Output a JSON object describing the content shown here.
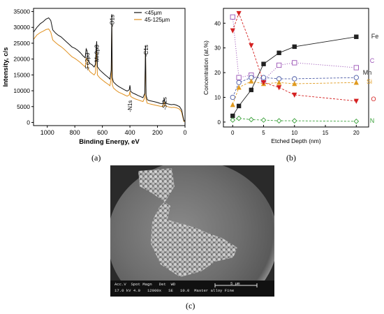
{
  "panel_labels": {
    "a": "(a)",
    "b": "(b)",
    "c": "(c)"
  },
  "chart_data": [
    {
      "type": "line",
      "panel": "(a)",
      "xlabel": "Binding Energy, eV",
      "ylabel": "Intensity, c/s",
      "xlim": [
        1100,
        0
      ],
      "ylim": [
        -1000,
        36000
      ],
      "x_reversed": true,
      "xticks": [
        1000,
        800,
        600,
        400,
        200,
        0
      ],
      "yticks": [
        0,
        5000,
        10000,
        15000,
        20000,
        25000,
        30000,
        35000
      ],
      "legend_position": "top-right",
      "grid": false,
      "peak_labels": [
        {
          "text": "-O1s",
          "x": 530,
          "y": 34000
        },
        {
          "text": "-Fe2p3",
          "x": 710,
          "y": 22000
        },
        {
          "text": "-Mn2p3",
          "x": 640,
          "y": 24500
        },
        {
          "text": "-C1s",
          "x": 285,
          "y": 24500
        },
        {
          "text": "-N1s",
          "x": 400,
          "y": 7000
        },
        {
          "text": "-Si2s",
          "x": 150,
          "y": 8000
        }
      ],
      "series": [
        {
          "name": "<45µm",
          "color": "#111111",
          "points": [
            [
              1100,
              28500
            ],
            [
              1075,
              30000
            ],
            [
              1050,
              31200
            ],
            [
              1030,
              31800
            ],
            [
              1010,
              32600
            ],
            [
              990,
              33000
            ],
            [
              975,
              32200
            ],
            [
              960,
              29200
            ],
            [
              940,
              28200
            ],
            [
              920,
              27500
            ],
            [
              900,
              27000
            ],
            [
              880,
              26200
            ],
            [
              860,
              25400
            ],
            [
              840,
              24600
            ],
            [
              820,
              23800
            ],
            [
              800,
              23400
            ],
            [
              780,
              22800
            ],
            [
              760,
              22000
            ],
            [
              740,
              21000
            ],
            [
              725,
              20400
            ],
            [
              718,
              23200
            ],
            [
              711,
              22600
            ],
            [
              704,
              19600
            ],
            [
              690,
              18600
            ],
            [
              675,
              18200
            ],
            [
              660,
              17500
            ],
            [
              651,
              18300
            ],
            [
              645,
              23800
            ],
            [
              641,
              25600
            ],
            [
              636,
              17600
            ],
            [
              620,
              16600
            ],
            [
              600,
              15800
            ],
            [
              580,
              15000
            ],
            [
              560,
              14300
            ],
            [
              545,
              13700
            ],
            [
              536,
              16500
            ],
            [
              532,
              34200
            ],
            [
              528,
              14200
            ],
            [
              520,
              12800
            ],
            [
              500,
              11900
            ],
            [
              480,
              11300
            ],
            [
              460,
              10800
            ],
            [
              440,
              10300
            ],
            [
              420,
              9900
            ],
            [
              405,
              10300
            ],
            [
              400,
              11700
            ],
            [
              395,
              9800
            ],
            [
              380,
              9300
            ],
            [
              360,
              8900
            ],
            [
              340,
              8500
            ],
            [
              320,
              8100
            ],
            [
              305,
              7800
            ],
            [
              292,
              9200
            ],
            [
              287,
              24200
            ],
            [
              283,
              8600
            ],
            [
              275,
              7200
            ],
            [
              260,
              6900
            ],
            [
              240,
              6700
            ],
            [
              220,
              6500
            ],
            [
              200,
              6300
            ],
            [
              180,
              6000
            ],
            [
              160,
              5900
            ],
            [
              155,
              6800
            ],
            [
              150,
              7300
            ],
            [
              145,
              6200
            ],
            [
              135,
              6000
            ],
            [
              120,
              5800
            ],
            [
              100,
              5600
            ],
            [
              80,
              5700
            ],
            [
              60,
              5400
            ],
            [
              40,
              5000
            ],
            [
              25,
              4000
            ],
            [
              15,
              2000
            ],
            [
              8,
              500
            ],
            [
              0,
              600
            ]
          ]
        },
        {
          "name": "45-125µm",
          "color": "#e0901e",
          "points": [
            [
              1100,
              26200
            ],
            [
              1075,
              27600
            ],
            [
              1050,
              28400
            ],
            [
              1030,
              28800
            ],
            [
              1010,
              29300
            ],
            [
              990,
              29500
            ],
            [
              975,
              28500
            ],
            [
              960,
              26000
            ],
            [
              940,
              25200
            ],
            [
              920,
              24500
            ],
            [
              900,
              23900
            ],
            [
              880,
              23200
            ],
            [
              860,
              22400
            ],
            [
              840,
              21500
            ],
            [
              820,
              20700
            ],
            [
              800,
              20200
            ],
            [
              780,
              19600
            ],
            [
              760,
              18900
            ],
            [
              740,
              18100
            ],
            [
              725,
              17500
            ],
            [
              718,
              20200
            ],
            [
              711,
              19800
            ],
            [
              704,
              17000
            ],
            [
              690,
              16000
            ],
            [
              675,
              15500
            ],
            [
              660,
              15000
            ],
            [
              651,
              15600
            ],
            [
              645,
              21000
            ],
            [
              641,
              22600
            ],
            [
              636,
              15000
            ],
            [
              620,
              14100
            ],
            [
              600,
              13400
            ],
            [
              580,
              12700
            ],
            [
              560,
              12100
            ],
            [
              545,
              11600
            ],
            [
              536,
              14000
            ],
            [
              532,
              31200
            ],
            [
              528,
              12000
            ],
            [
              520,
              10900
            ],
            [
              500,
              10100
            ],
            [
              480,
              9500
            ],
            [
              460,
              9100
            ],
            [
              440,
              8700
            ],
            [
              420,
              8300
            ],
            [
              405,
              8700
            ],
            [
              400,
              9800
            ],
            [
              395,
              8200
            ],
            [
              380,
              7800
            ],
            [
              360,
              7400
            ],
            [
              340,
              7100
            ],
            [
              320,
              6800
            ],
            [
              305,
              6600
            ],
            [
              292,
              7800
            ],
            [
              287,
              22800
            ],
            [
              283,
              7300
            ],
            [
              275,
              6100
            ],
            [
              260,
              5900
            ],
            [
              240,
              5700
            ],
            [
              220,
              5500
            ],
            [
              200,
              5300
            ],
            [
              180,
              5100
            ],
            [
              160,
              5000
            ],
            [
              155,
              5800
            ],
            [
              150,
              6300
            ],
            [
              145,
              5300
            ],
            [
              135,
              5100
            ],
            [
              120,
              4900
            ],
            [
              100,
              4700
            ],
            [
              80,
              4800
            ],
            [
              60,
              4600
            ],
            [
              40,
              4200
            ],
            [
              25,
              3300
            ],
            [
              15,
              1500
            ],
            [
              8,
              300
            ],
            [
              0,
              400
            ]
          ]
        }
      ]
    },
    {
      "type": "line",
      "panel": "(b)",
      "xlabel": "Etched Depth (nm)",
      "ylabel": "Concentration (at.%)",
      "xlim": [
        -1.5,
        22
      ],
      "ylim": [
        -2,
        46
      ],
      "xticks": [
        0,
        5,
        10,
        15,
        20
      ],
      "yticks": [
        0,
        10,
        20,
        30,
        40
      ],
      "legend": "inline series labels at right",
      "grid": false,
      "series": [
        {
          "name": "Fe",
          "color": "#222222",
          "marker": "square-filled",
          "dash": "solid",
          "x": [
            0,
            1,
            3,
            5,
            7.5,
            10,
            20
          ],
          "y": [
            2.5,
            6.5,
            13,
            23.5,
            28,
            30.5,
            34.5
          ]
        },
        {
          "name": "C",
          "color": "#9a52b5",
          "marker": "square-open",
          "dash": "dotted",
          "x": [
            0,
            1,
            3,
            5,
            7.5,
            10,
            20
          ],
          "y": [
            42.5,
            18,
            19,
            17,
            23,
            24,
            22
          ]
        },
        {
          "name": "Mn",
          "color": "#4a5aa5",
          "marker": "circle-open",
          "dash": "dashed",
          "x": [
            0,
            1,
            3,
            5,
            7.5,
            10,
            20
          ],
          "y": [
            10,
            16,
            18,
            18,
            17.5,
            17.5,
            18
          ]
        },
        {
          "name": "Si",
          "color": "#e09a1e",
          "marker": "triangle-up-filled",
          "dash": "dashed",
          "x": [
            0,
            1,
            3,
            5,
            7.5,
            10,
            20
          ],
          "y": [
            7,
            14,
            16.5,
            15.5,
            16,
            15.5,
            16
          ]
        },
        {
          "name": "O",
          "color": "#d42020",
          "marker": "triangle-down-filled",
          "dash": "dashed",
          "x": [
            0,
            1,
            3,
            5,
            7.5,
            10,
            20
          ],
          "y": [
            37,
            44,
            31,
            16,
            14,
            11,
            8.5
          ]
        },
        {
          "name": "N",
          "color": "#3aa03a",
          "marker": "diamond-open",
          "dash": "dashed",
          "x": [
            0,
            1,
            3,
            5,
            7.5,
            10,
            20
          ],
          "y": [
            0.8,
            1.5,
            1,
            0.8,
            0.5,
            0.5,
            0.3
          ]
        }
      ]
    }
  ],
  "sem": {
    "header": "Acc.V  Spot Magn   Det  WD",
    "scale_label": "5 µm",
    "values": "17.0 kV 4.0   12000x   SE   10.0  Master alloy Fine"
  }
}
